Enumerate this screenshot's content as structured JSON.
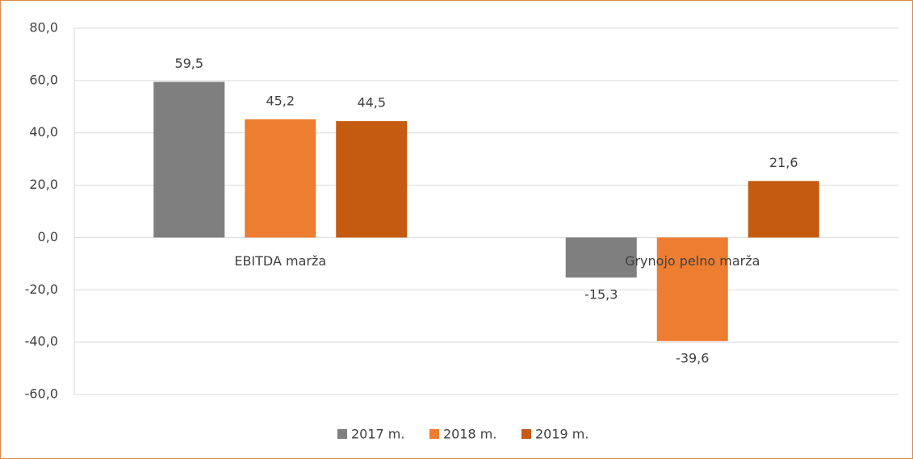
{
  "chart_data": {
    "type": "bar",
    "categories": [
      "EBITDA marža",
      "Grynojo pelno marža"
    ],
    "series": [
      {
        "name": "2017 m.",
        "color": "#7f7f7f",
        "values": [
          59.5,
          -15.3
        ],
        "value_labels": [
          "59,5",
          "-15,3"
        ]
      },
      {
        "name": "2018 m.",
        "color": "#ed7d31",
        "values": [
          45.2,
          -39.6
        ],
        "value_labels": [
          "45,2",
          "-39,6"
        ]
      },
      {
        "name": "2019 m.",
        "color": "#c55a11",
        "values": [
          44.5,
          21.6
        ],
        "value_labels": [
          "44,5",
          "21,6"
        ]
      }
    ],
    "ylim": [
      -60,
      80
    ],
    "yticks": [
      {
        "value": -60,
        "label": "-60,0"
      },
      {
        "value": -40,
        "label": "-40,0"
      },
      {
        "value": -20,
        "label": "-20,0"
      },
      {
        "value": 0,
        "label": "0,0"
      },
      {
        "value": 20,
        "label": "20,0"
      },
      {
        "value": 40,
        "label": "40,0"
      },
      {
        "value": 60,
        "label": "60,0"
      },
      {
        "value": 80,
        "label": "80,0"
      }
    ],
    "grid": true,
    "legend": "bottom"
  }
}
